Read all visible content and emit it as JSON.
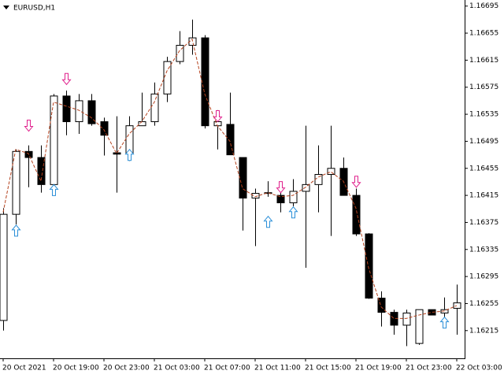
{
  "chart_data": {
    "type": "candlestick",
    "title": "EURUSD,H1",
    "categories": [
      "20 Oct 2021",
      null,
      null,
      null,
      "20 Oct 19:00",
      null,
      null,
      null,
      "20 Oct 23:00",
      null,
      null,
      null,
      "21 Oct 03:00",
      null,
      null,
      null,
      "21 Oct 07:00",
      null,
      null,
      null,
      "21 Oct 11:00",
      null,
      null,
      null,
      "21 Oct 15:00",
      null,
      null,
      null,
      "21 Oct 19:00",
      null,
      null,
      null,
      "21 Oct 23:00",
      null,
      null,
      null,
      "22 Oct 03:00"
    ],
    "open": [
      1.1623,
      1.16387,
      1.1648,
      1.16471,
      1.16431,
      1.16562,
      1.16524,
      1.16555,
      1.16524,
      1.16478,
      1.16477,
      1.16518,
      1.16524,
      1.16565,
      1.16613,
      1.16637,
      1.16648,
      1.16518,
      1.1652,
      1.16471,
      1.16411,
      1.16418,
      1.16415,
      1.16404,
      1.16421,
      1.16431,
      1.16446,
      1.16455,
      1.16415,
      1.16358,
      1.16263,
      1.16242,
      1.16223,
      1.16196,
      1.16246,
      1.16241,
      1.16248
    ],
    "high": [
      1.16396,
      1.16483,
      1.16489,
      1.16489,
      1.16565,
      1.1657,
      1.16565,
      1.16565,
      1.1653,
      1.16532,
      1.16532,
      1.16567,
      1.16582,
      1.1662,
      1.16658,
      1.16675,
      1.16652,
      1.16541,
      1.16567,
      1.16471,
      1.16425,
      1.16436,
      1.16425,
      1.16439,
      1.16518,
      1.16489,
      1.16518,
      1.16471,
      1.16425,
      1.16359,
      1.16273,
      1.16246,
      1.16246,
      1.16246,
      1.16246,
      1.16264,
      1.16283
    ],
    "low": [
      1.16215,
      1.16372,
      1.16427,
      1.16419,
      1.16425,
      1.16504,
      1.16506,
      1.16518,
      1.16474,
      1.16419,
      1.16466,
      1.16518,
      1.16518,
      1.16553,
      1.16609,
      1.16623,
      1.16514,
      1.16483,
      1.16475,
      1.16363,
      1.1634,
      1.16413,
      1.1639,
      1.16399,
      1.16308,
      1.1639,
      1.16355,
      1.16415,
      1.16355,
      1.16262,
      1.16221,
      1.16209,
      1.16192,
      1.16194,
      1.16238,
      1.16221,
      1.16209
    ],
    "close": [
      1.16387,
      1.1648,
      1.16471,
      1.16431,
      1.16562,
      1.16524,
      1.16555,
      1.16521,
      1.16504,
      1.16476,
      1.16518,
      1.16524,
      1.16565,
      1.16613,
      1.16637,
      1.16648,
      1.16518,
      1.16524,
      1.16475,
      1.16411,
      1.16418,
      1.16419,
      1.16404,
      1.16421,
      1.16431,
      1.16446,
      1.16455,
      1.16415,
      1.16358,
      1.16263,
      1.16242,
      1.16223,
      1.16241,
      1.16246,
      1.16238,
      1.16246,
      1.16256
    ],
    "up_color": "#ffffff",
    "down_color": "#000000",
    "outline_color": "#000000",
    "overlays": [
      {
        "type": "line",
        "color": "#b5431f",
        "values": [
          1.1639,
          1.16483,
          1.16477,
          1.16436,
          1.16553,
          1.16547,
          1.16541,
          1.1653,
          1.16512,
          1.16477,
          1.16506,
          1.16524,
          1.16553,
          1.16599,
          1.16629,
          1.16646,
          1.16565,
          1.16518,
          1.16495,
          1.16425,
          1.16413,
          1.16419,
          1.16413,
          1.16415,
          1.16427,
          1.16442,
          1.1645,
          1.16436,
          1.16396,
          1.16308,
          1.1625,
          1.16233,
          1.16233,
          1.16238,
          1.16242,
          1.16244,
          1.16252
        ]
      },
      {
        "type": "arrow-down",
        "color": "#e0208c",
        "values": [
          null,
          null,
          1.1651,
          null,
          null,
          1.16579,
          null,
          null,
          null,
          null,
          null,
          null,
          null,
          null,
          null,
          null,
          null,
          1.16524,
          null,
          null,
          null,
          null,
          1.16419,
          null,
          null,
          null,
          null,
          null,
          1.16427,
          null,
          null,
          null,
          null,
          null,
          null,
          null,
          null
        ]
      },
      {
        "type": "arrow-up",
        "color": "#2a8fd8",
        "values": [
          null,
          1.16371,
          null,
          null,
          1.16431,
          null,
          null,
          null,
          null,
          null,
          1.16483,
          null,
          null,
          null,
          null,
          null,
          null,
          null,
          null,
          null,
          null,
          1.16384,
          null,
          1.16398,
          null,
          null,
          null,
          null,
          null,
          null,
          null,
          null,
          null,
          null,
          null,
          1.16235,
          null
        ]
      }
    ],
    "ylim": [
      1.16174,
      1.16704
    ],
    "yticks": [
      1.16695,
      1.16655,
      1.16615,
      1.16575,
      1.16535,
      1.16495,
      1.16455,
      1.16415,
      1.16375,
      1.16335,
      1.16295,
      1.16255,
      1.16215
    ]
  }
}
